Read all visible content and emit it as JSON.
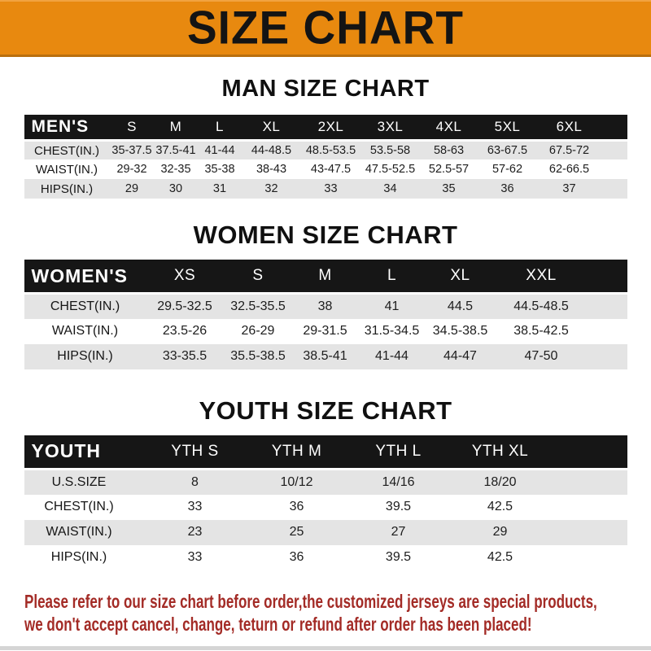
{
  "banner": {
    "title": "SIZE CHART"
  },
  "sections": [
    {
      "heading": "MAN SIZE CHART",
      "header_label": "MEN'S",
      "columns": [
        "S",
        "M",
        "L",
        "XL",
        "2XL",
        "3XL",
        "4XL",
        "5XL",
        "6XL"
      ],
      "rows": [
        {
          "label": "CHEST(IN.)",
          "values": [
            "35-37.5",
            "37.5-41",
            "41-44",
            "44-48.5",
            "48.5-53.5",
            "53.5-58",
            "58-63",
            "63-67.5",
            "67.5-72"
          ]
        },
        {
          "label": "WAIST(IN.)",
          "values": [
            "29-32",
            "32-35",
            "35-38",
            "38-43",
            "43-47.5",
            "47.5-52.5",
            "52.5-57",
            "57-62",
            "62-66.5"
          ]
        },
        {
          "label": "HIPS(IN.)",
          "values": [
            "29",
            "30",
            "31",
            "32",
            "33",
            "34",
            "35",
            "36",
            "37"
          ]
        }
      ]
    },
    {
      "heading": "WOMEN SIZE CHART",
      "header_label": "WOMEN'S",
      "columns": [
        "XS",
        "S",
        "M",
        "L",
        "XL",
        "XXL"
      ],
      "rows": [
        {
          "label": "CHEST(IN.)",
          "values": [
            "29.5-32.5",
            "32.5-35.5",
            "38",
            "41",
            "44.5",
            "44.5-48.5"
          ]
        },
        {
          "label": "WAIST(IN.)",
          "values": [
            "23.5-26",
            "26-29",
            "29-31.5",
            "31.5-34.5",
            "34.5-38.5",
            "38.5-42.5"
          ]
        },
        {
          "label": "HIPS(IN.)",
          "values": [
            "33-35.5",
            "35.5-38.5",
            "38.5-41",
            "41-44",
            "44-47",
            "47-50"
          ]
        }
      ]
    },
    {
      "heading": "YOUTH SIZE CHART",
      "header_label": "YOUTH",
      "columns": [
        "YTH S",
        "YTH M",
        "YTH L",
        "YTH XL"
      ],
      "rows": [
        {
          "label": "U.S.SIZE",
          "values": [
            "8",
            "10/12",
            "14/16",
            "18/20"
          ]
        },
        {
          "label": "CHEST(IN.)",
          "values": [
            "33",
            "36",
            "39.5",
            "42.5"
          ]
        },
        {
          "label": "WAIST(IN.)",
          "values": [
            "23",
            "25",
            "27",
            "29"
          ]
        },
        {
          "label": "HIPS(IN.)",
          "values": [
            "33",
            "36",
            "39.5",
            "42.5"
          ]
        }
      ]
    }
  ],
  "disclaimer": {
    "line1": "Please refer to our size chart before order,the customized jerseys are special products,",
    "line2": "we don't accept cancel, change, teturn or refund after order has been placed!"
  },
  "colors": {
    "banner_orange": "#E8890F",
    "banner_border": "#B96F0E",
    "header_bar_black": "#161616",
    "row_gray": "#E4E4E4",
    "disclaimer_red": "#A32B26"
  }
}
